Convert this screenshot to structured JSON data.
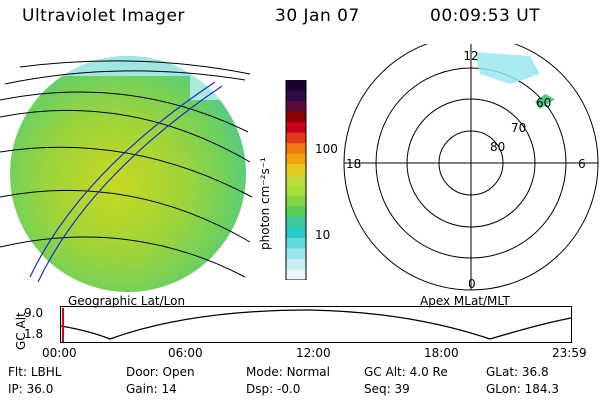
{
  "header": {
    "instrument": "Ultraviolet Imager",
    "date": "30 Jan 07",
    "time": "00:09:53 UT"
  },
  "colorbar": {
    "unit_label": "photon cm⁻²s⁻¹",
    "ticks": [
      "100",
      "10"
    ],
    "colors": [
      "#1a0033",
      "#2e0a4a",
      "#5a0a3a",
      "#8b0000",
      "#c8001a",
      "#e03a1a",
      "#f07a10",
      "#f2a20a",
      "#e8c81e",
      "#c8d83a",
      "#a6e03a",
      "#7ed640",
      "#5ccc55",
      "#3cc89c",
      "#28c8c8",
      "#5fd8e0",
      "#9ae6ee",
      "#c8f0f4",
      "#e8f8fa"
    ]
  },
  "left_panel": {
    "caption": "Geographic Lat/Lon"
  },
  "right_panel": {
    "caption": "Apex MLat/MLT",
    "mlt_labels": {
      "top": "12",
      "left": "18",
      "right": "6",
      "bottom": "0"
    },
    "lat_labels": [
      "60",
      "70",
      "80"
    ]
  },
  "timeline": {
    "axis_label": "GC Alt",
    "y_ticks": [
      "9.0",
      "1.8"
    ],
    "x_ticks": [
      "00:00",
      "06:00",
      "12:00",
      "18:00",
      "23:59"
    ]
  },
  "status": {
    "row1": [
      {
        "key": "Flt:",
        "value": "LBHL"
      },
      {
        "key": "Door:",
        "value": "Open"
      },
      {
        "key": "Mode:",
        "value": "Normal"
      },
      {
        "key": "GC Alt:",
        "value": "4.0 Re"
      },
      {
        "key": "GLat:",
        "value": "36.8"
      }
    ],
    "row2": [
      {
        "key": "IP:",
        "value": "36.0"
      },
      {
        "key": "Gain:",
        "value": "14"
      },
      {
        "key": "Dsp:",
        "value": "-0.0"
      },
      {
        "key": "Seq:",
        "value": "39"
      },
      {
        "key": "GLon:",
        "value": "184.3"
      }
    ]
  }
}
